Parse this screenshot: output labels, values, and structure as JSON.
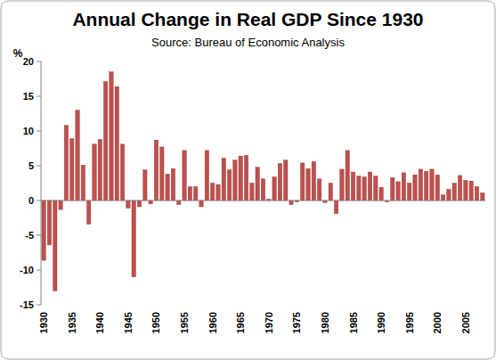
{
  "chart_data": {
    "type": "bar",
    "title": "Annual Change in Real GDP Since 1930",
    "subtitle": "Source: Bureau of Economic Analysis",
    "y_label": "%",
    "categories": [
      "1930",
      null,
      null,
      null,
      null,
      "1935",
      null,
      null,
      null,
      null,
      "1940",
      null,
      null,
      null,
      null,
      "1945",
      null,
      null,
      null,
      null,
      "1950",
      null,
      null,
      null,
      null,
      "1955",
      null,
      null,
      null,
      null,
      "1960",
      null,
      null,
      null,
      null,
      "1965",
      null,
      null,
      null,
      null,
      "1970",
      null,
      null,
      null,
      null,
      "1975",
      null,
      null,
      null,
      null,
      "1980",
      null,
      null,
      null,
      null,
      "1985",
      null,
      null,
      null,
      null,
      "1990",
      null,
      null,
      null,
      null,
      "1995",
      null,
      null,
      null,
      null,
      "2000",
      null,
      null,
      null,
      null,
      "2005",
      null,
      null,
      null
    ],
    "values": [
      -8.6,
      -6.4,
      -13.0,
      -1.3,
      10.8,
      8.9,
      13.0,
      5.1,
      -3.4,
      8.1,
      8.8,
      17.1,
      18.5,
      16.4,
      8.1,
      -1.1,
      -11.0,
      -0.9,
      4.4,
      -0.5,
      8.7,
      7.7,
      3.8,
      4.6,
      -0.6,
      7.2,
      2.0,
      2.0,
      -0.9,
      7.2,
      2.5,
      2.3,
      6.1,
      4.4,
      5.8,
      6.4,
      6.5,
      2.5,
      4.8,
      3.1,
      0.2,
      3.4,
      5.3,
      5.8,
      -0.6,
      -0.2,
      5.4,
      4.6,
      5.6,
      3.1,
      -0.3,
      2.5,
      -1.9,
      4.5,
      7.2,
      4.1,
      3.5,
      3.4,
      4.1,
      3.5,
      1.9,
      -0.2,
      3.3,
      2.7,
      4.0,
      2.5,
      3.7,
      4.5,
      4.2,
      4.5,
      3.7,
      0.8,
      1.6,
      2.5,
      3.6,
      2.9,
      2.8,
      2.0,
      1.1
    ],
    "color": "#c0504d",
    "ylim": [
      -15,
      20
    ],
    "yticks": [
      -15,
      -10,
      -5,
      0,
      5,
      10,
      15,
      20
    ],
    "grid": false
  }
}
